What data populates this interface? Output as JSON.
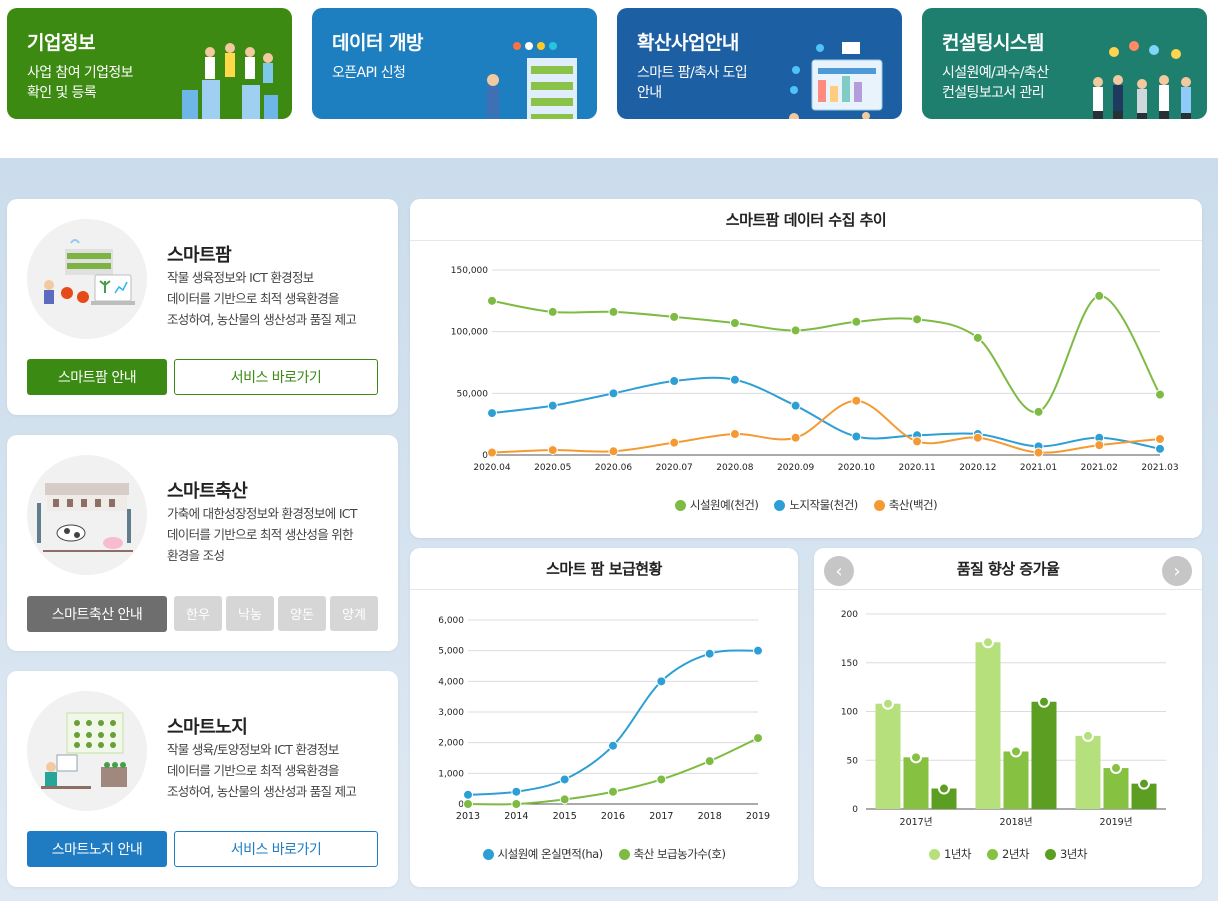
{
  "tiles": [
    {
      "title": "기업정보",
      "desc": "사업 참여 기업정보\n확인 및 등록",
      "color": "#3c8a12",
      "icon": "people-celebrating-icon"
    },
    {
      "title": "데이터 개방",
      "desc": "오픈API 신청",
      "color": "#1d7fc0",
      "icon": "farmer-data-icon"
    },
    {
      "title": "확산사업안내",
      "desc": "스마트 팜/축사 도입\n안내",
      "color": "#1d5fa3",
      "icon": "dashboard-worker-icon"
    },
    {
      "title": "컨설팅시스템",
      "desc": "시설원예/과수/축산\n컨설팅보고서 관리",
      "color": "#1f7f6e",
      "icon": "consulting-team-icon"
    }
  ],
  "services": {
    "farm": {
      "title": "스마트팜",
      "desc": "작물 생육정보와 ICT 환경정보\n데이터를 기반으로 최적 생육환경을\n조성하여, 농산물의 생산성과 품질 제고",
      "btn_guide": "스마트팜 안내",
      "btn_go": "서비스 바로가기",
      "icon": "greenhouse-icon"
    },
    "livestock": {
      "title": "스마트축산",
      "desc": "가축에 대한성장정보와 환경정보에 ICT\n데이터를 기반으로 최적 생산성을 위한\n환경을 조성",
      "btn_guide": "스마트축산 안내",
      "chips": [
        "한우",
        "낙농",
        "양돈",
        "양계"
      ],
      "icon": "barn-icon"
    },
    "field": {
      "title": "스마트노지",
      "desc": "작물 생육/토양정보와 ICT 환경정보\n데이터를 기반으로 최적 생육환경을\n조성하여, 농산물의 생산성과 품질 제고",
      "btn_guide": "스마트노지 안내",
      "btn_go": "서비스 바로가기",
      "icon": "field-icon"
    }
  },
  "colors": {
    "green": "#3b8a13",
    "gray": "#6e6e6e",
    "blue": "#1f7cc2",
    "series_green": "#7dbb42",
    "series_blue": "#2d9fd4",
    "series_orange": "#f59a33",
    "bar1": "#b6e07c",
    "bar2": "#86c142",
    "bar3": "#5c9e22"
  },
  "chart_data": [
    {
      "type": "line",
      "title": "스마트팜 데이터 수집 추이",
      "categories": [
        "2020.04",
        "2020.05",
        "2020.06",
        "2020.07",
        "2020.08",
        "2020.09",
        "2020.10",
        "2020.11",
        "2020.12",
        "2021.01",
        "2021.02",
        "2021.03"
      ],
      "yticks": [
        "0",
        "50,000",
        "100,000",
        "150,000"
      ],
      "ylim": [
        0,
        150000
      ],
      "series": [
        {
          "name": "시설원예(천건)",
          "values": [
            125000,
            116000,
            116000,
            112000,
            107000,
            101000,
            108000,
            110000,
            95000,
            35000,
            129000,
            49000
          ]
        },
        {
          "name": "노지작물(천건)",
          "values": [
            34000,
            40000,
            50000,
            60000,
            61000,
            40000,
            15000,
            16000,
            17000,
            7000,
            14000,
            5000
          ]
        },
        {
          "name": "축산(백건)",
          "values": [
            2000,
            4000,
            3000,
            10000,
            17000,
            14000,
            44000,
            11000,
            14000,
            2000,
            8000,
            13000
          ]
        }
      ]
    },
    {
      "type": "line",
      "title": "스마트 팜 보급현황",
      "categories": [
        "2013",
        "2014",
        "2015",
        "2016",
        "2017",
        "2018",
        "2019"
      ],
      "yticks": [
        "0",
        "1,000",
        "2,000",
        "3,000",
        "4,000",
        "5,000",
        "6,000"
      ],
      "ylim": [
        0,
        6000
      ],
      "series": [
        {
          "name": "시설원예 온실면적(ha)",
          "values": [
            300,
            400,
            800,
            1900,
            4000,
            4900,
            5000
          ]
        },
        {
          "name": "축산 보급농가수(호)",
          "values": [
            0,
            0,
            150,
            400,
            800,
            1400,
            2150
          ]
        }
      ]
    },
    {
      "type": "bar",
      "title": "품질 향상 증가율",
      "categories": [
        "2017년",
        "2018년",
        "2019년"
      ],
      "yticks": [
        "0",
        "50",
        "100",
        "150",
        "200"
      ],
      "ylim": [
        0,
        200
      ],
      "series": [
        {
          "name": "1년차",
          "values": [
            108,
            171,
            75
          ]
        },
        {
          "name": "2년차",
          "values": [
            53,
            59,
            42
          ]
        },
        {
          "name": "3년차",
          "values": [
            21,
            110,
            26
          ]
        }
      ]
    }
  ],
  "nav": {
    "prev": "‹",
    "next": "›"
  }
}
